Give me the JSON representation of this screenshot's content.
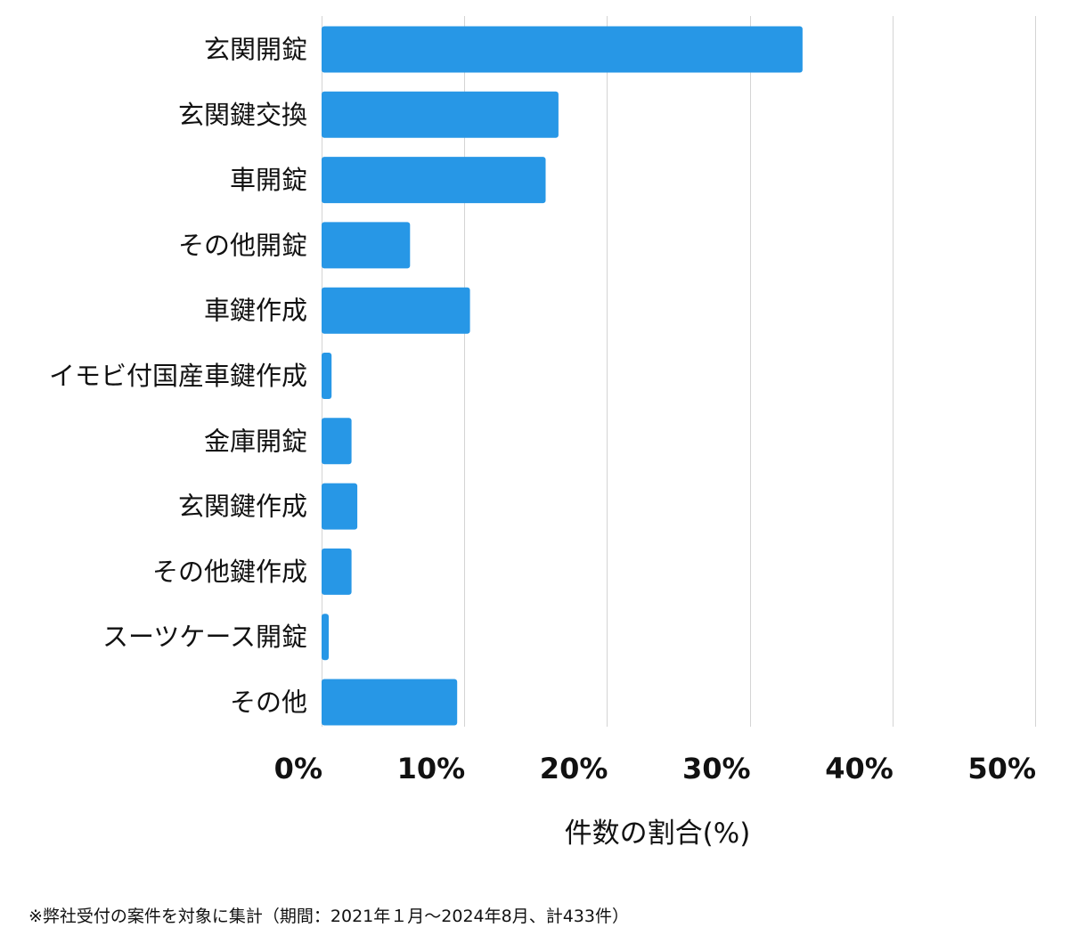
{
  "chart_data": {
    "type": "bar",
    "orientation": "horizontal",
    "categories": [
      "玄関開錠",
      "玄関鍵交換",
      "車開錠",
      "その他開錠",
      "車鍵作成",
      "イモビ付国産車鍵作成",
      "金庫開錠",
      "玄関鍵作成",
      "その他鍵作成",
      "スーツケース開錠",
      "その他"
    ],
    "values": [
      33.7,
      16.6,
      15.7,
      6.2,
      10.4,
      0.7,
      2.1,
      2.5,
      2.1,
      0.5,
      9.5
    ],
    "xlabel": "件数の割合(%)",
    "xlim": [
      0,
      50
    ],
    "x_ticks": [
      "0%",
      "10%",
      "20%",
      "30%",
      "40%",
      "50%"
    ],
    "grid": "vertical",
    "bar_color": "#2797e6",
    "grid_color": "#d4d4d4"
  },
  "footnote": "※弊社受付の案件を対象に集計（期間：2021年１月〜2024年8月、計433件）"
}
